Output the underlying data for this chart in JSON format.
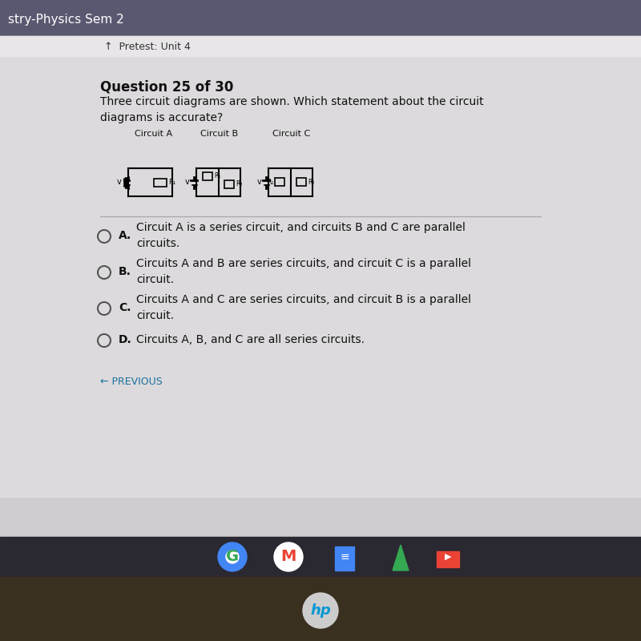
{
  "title": "Question 25 of 30",
  "question_text": "Three circuit diagrams are shown. Which statement about the circuit\ndiagrams is accurate?",
  "circuit_labels": [
    "Circuit A",
    "Circuit B",
    "Circuit C"
  ],
  "answer_options": [
    {
      "letter": "A.",
      "bold_text": "Circuit A is a series circuit, and circuits B and C are parallel\n",
      "normal_text": "circuits."
    },
    {
      "letter": "B.",
      "bold_text": "",
      "normal_text": "Circuits A and B are series circuits, and circuit C is a parallel\ncircuit."
    },
    {
      "letter": "C.",
      "bold_text": "",
      "normal_text": "Circuits A and C are series circuits, and circuit B is a parallel\ncircuit."
    },
    {
      "letter": "D.",
      "bold_text": "",
      "normal_text": "Circuits A, B, and C are all series circuits."
    }
  ],
  "previous_text": "← PREVIOUS",
  "header_text": "stry-Physics Sem 2",
  "pretest_text": "↑  Pretest: Unit 4",
  "bg_color_main": "#d0cdd0",
  "bg_color_content": "#dcdadc",
  "bg_color_header": "#5a5870",
  "bg_color_taskbar": "#2a2830",
  "taskbar_color": "#3a3848"
}
